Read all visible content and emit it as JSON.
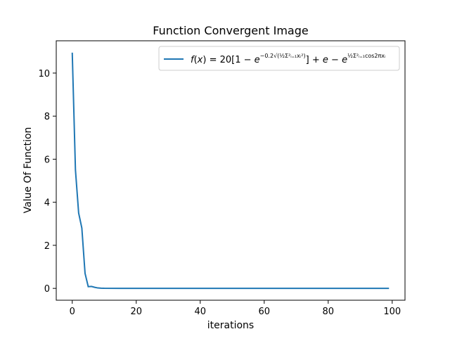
{
  "chart_data": {
    "type": "line",
    "title": "Function Convergent Image",
    "xlabel": "iterations",
    "ylabel": "Value Of Function",
    "xlim": [
      -5,
      104
    ],
    "ylim": [
      -0.55,
      11.5
    ],
    "xticks": [
      0,
      20,
      40,
      60,
      80,
      100
    ],
    "yticks": [
      0,
      2,
      4,
      6,
      8,
      10
    ],
    "grid": false,
    "legend_position": "top-right",
    "series": [
      {
        "name": "f(x)=20[1−e^{−0.2√(½Σ²ᵢ₌₁xᵢ²)}]+e−e^{½Σ²ᵢ₌₁cos2πxᵢ}",
        "color": "#1f77b4",
        "x": [
          0,
          1,
          2,
          3,
          4,
          5,
          6,
          7,
          8,
          9,
          10,
          15,
          20,
          30,
          40,
          50,
          60,
          70,
          80,
          90,
          99
        ],
        "y": [
          10.95,
          5.5,
          3.5,
          2.8,
          0.7,
          0.08,
          0.09,
          0.05,
          0.02,
          0.01,
          0.005,
          0.002,
          0.001,
          0.001,
          0.001,
          0.001,
          0.001,
          0.001,
          0.001,
          0.001,
          0.001
        ]
      }
    ]
  }
}
